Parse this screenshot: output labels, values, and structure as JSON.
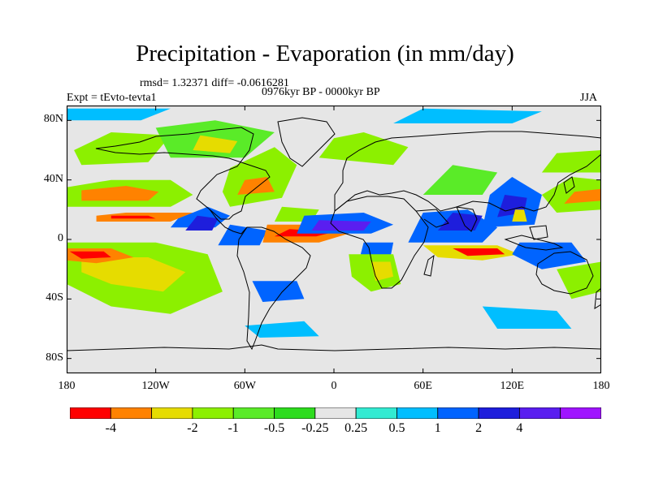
{
  "title": "Precipitation - Evaporation (in mm/day)",
  "stats": "rmsd= 1.32371 diff= -0.0616281",
  "period": "0976kyr BP - 0000kyr BP",
  "expt": "Expt = tEvto-tevta1",
  "season": "JJA",
  "map": {
    "projection": "cylindrical-equidistant",
    "lon_range": [
      -180,
      180
    ],
    "lat_range": [
      -90,
      90
    ],
    "lat_ticks": [
      {
        "lat": 80,
        "label": "80N"
      },
      {
        "lat": 40,
        "label": "40N"
      },
      {
        "lat": 0,
        "label": "0"
      },
      {
        "lat": -40,
        "label": "40S"
      },
      {
        "lat": -80,
        "label": "80S"
      }
    ],
    "lon_ticks": [
      {
        "lon": -180,
        "label": "180"
      },
      {
        "lon": -120,
        "label": "120W"
      },
      {
        "lon": -60,
        "label": "60W"
      },
      {
        "lon": 0,
        "label": "0"
      },
      {
        "lon": 60,
        "label": "60E"
      },
      {
        "lon": 120,
        "label": "120E"
      },
      {
        "lon": 180,
        "label": "180"
      }
    ],
    "neutral_color": "#e6e6e6",
    "regions": [
      {
        "c": 3,
        "pts": [
          [
            -180,
            22
          ],
          [
            -110,
            22
          ],
          [
            -95,
            30
          ],
          [
            -110,
            40
          ],
          [
            -150,
            40
          ],
          [
            -180,
            35
          ]
        ]
      },
      {
        "c": 1,
        "pts": [
          [
            -170,
            26
          ],
          [
            -125,
            26
          ],
          [
            -118,
            32
          ],
          [
            -140,
            36
          ],
          [
            -170,
            33
          ]
        ]
      },
      {
        "c": 3,
        "pts": [
          [
            -180,
            -2
          ],
          [
            -120,
            -2
          ],
          [
            -85,
            -10
          ],
          [
            -75,
            -35
          ],
          [
            -110,
            -50
          ],
          [
            -150,
            -45
          ],
          [
            -180,
            -30
          ]
        ]
      },
      {
        "c": 2,
        "pts": [
          [
            -170,
            -12
          ],
          [
            -125,
            -12
          ],
          [
            -100,
            -22
          ],
          [
            -115,
            -35
          ],
          [
            -150,
            -30
          ],
          [
            -170,
            -22
          ]
        ]
      },
      {
        "c": 1,
        "pts": [
          [
            -180,
            -6
          ],
          [
            -150,
            -6
          ],
          [
            -135,
            -12
          ],
          [
            -160,
            -16
          ],
          [
            -180,
            -14
          ]
        ]
      },
      {
        "c": 0,
        "pts": [
          [
            -178,
            -8
          ],
          [
            -155,
            -8
          ],
          [
            -150,
            -12
          ],
          [
            -170,
            -13
          ]
        ]
      },
      {
        "c": 1,
        "pts": [
          [
            -160,
            12
          ],
          [
            -110,
            12
          ],
          [
            -95,
            18
          ],
          [
            -140,
            18
          ],
          [
            -160,
            16
          ]
        ]
      },
      {
        "c": 0,
        "pts": [
          [
            -150,
            14
          ],
          [
            -120,
            14
          ],
          [
            -125,
            16
          ],
          [
            -150,
            16
          ]
        ]
      },
      {
        "c": 9,
        "pts": [
          [
            -110,
            8
          ],
          [
            -80,
            8
          ],
          [
            -70,
            16
          ],
          [
            -85,
            22
          ],
          [
            -105,
            14
          ]
        ]
      },
      {
        "c": 10,
        "pts": [
          [
            -100,
            6
          ],
          [
            -82,
            6
          ],
          [
            -78,
            14
          ],
          [
            -92,
            16
          ]
        ]
      },
      {
        "c": 9,
        "pts": [
          [
            -78,
            -4
          ],
          [
            -50,
            -4
          ],
          [
            -45,
            6
          ],
          [
            -70,
            10
          ]
        ]
      },
      {
        "c": 9,
        "pts": [
          [
            -55,
            -28
          ],
          [
            -25,
            -28
          ],
          [
            -20,
            -40
          ],
          [
            -48,
            -42
          ]
        ]
      },
      {
        "c": 3,
        "pts": [
          [
            -70,
            22
          ],
          [
            -35,
            28
          ],
          [
            -25,
            50
          ],
          [
            -40,
            62
          ],
          [
            -70,
            48
          ],
          [
            -75,
            32
          ]
        ]
      },
      {
        "c": 1,
        "pts": [
          [
            -65,
            30
          ],
          [
            -40,
            32
          ],
          [
            -45,
            42
          ],
          [
            -60,
            40
          ]
        ]
      },
      {
        "c": 3,
        "pts": [
          [
            -170,
            50
          ],
          [
            -125,
            52
          ],
          [
            -110,
            70
          ],
          [
            -150,
            72
          ],
          [
            -175,
            60
          ]
        ]
      },
      {
        "c": 4,
        "pts": [
          [
            -110,
            55
          ],
          [
            -60,
            55
          ],
          [
            -40,
            72
          ],
          [
            -80,
            80
          ],
          [
            -120,
            75
          ]
        ]
      },
      {
        "c": 2,
        "pts": [
          [
            -95,
            60
          ],
          [
            -70,
            58
          ],
          [
            -65,
            66
          ],
          [
            -90,
            70
          ]
        ]
      },
      {
        "c": 1,
        "pts": [
          [
            -48,
            -2
          ],
          [
            -10,
            -2
          ],
          [
            10,
            4
          ],
          [
            -5,
            10
          ],
          [
            -45,
            10
          ]
        ]
      },
      {
        "c": 0,
        "pts": [
          [
            -40,
            2
          ],
          [
            -12,
            2
          ],
          [
            0,
            5
          ],
          [
            -30,
            7
          ]
        ]
      },
      {
        "c": 3,
        "pts": [
          [
            -40,
            12
          ],
          [
            -15,
            12
          ],
          [
            -10,
            20
          ],
          [
            -35,
            22
          ]
        ]
      },
      {
        "c": 9,
        "pts": [
          [
            -25,
            4
          ],
          [
            25,
            4
          ],
          [
            40,
            10
          ],
          [
            20,
            18
          ],
          [
            -20,
            16
          ]
        ]
      },
      {
        "c": 11,
        "pts": [
          [
            -15,
            6
          ],
          [
            20,
            6
          ],
          [
            25,
            12
          ],
          [
            -10,
            13
          ]
        ]
      },
      {
        "c": 9,
        "pts": [
          [
            20,
            -2
          ],
          [
            40,
            -2
          ],
          [
            38,
            -12
          ],
          [
            18,
            -10
          ]
        ]
      },
      {
        "c": 3,
        "pts": [
          [
            10,
            -10
          ],
          [
            40,
            -10
          ],
          [
            45,
            -30
          ],
          [
            25,
            -35
          ],
          [
            12,
            -25
          ]
        ]
      },
      {
        "c": 2,
        "pts": [
          [
            25,
            -15
          ],
          [
            38,
            -15
          ],
          [
            40,
            -25
          ],
          [
            28,
            -28
          ]
        ]
      },
      {
        "c": 3,
        "pts": [
          [
            -10,
            55
          ],
          [
            40,
            50
          ],
          [
            50,
            62
          ],
          [
            20,
            72
          ],
          [
            0,
            68
          ]
        ]
      },
      {
        "c": 4,
        "pts": [
          [
            60,
            30
          ],
          [
            100,
            30
          ],
          [
            110,
            45
          ],
          [
            80,
            50
          ]
        ]
      },
      {
        "c": 9,
        "pts": [
          [
            50,
            -2
          ],
          [
            100,
            -2
          ],
          [
            110,
            8
          ],
          [
            90,
            20
          ],
          [
            60,
            18
          ]
        ]
      },
      {
        "c": 10,
        "pts": [
          [
            70,
            6
          ],
          [
            95,
            6
          ],
          [
            100,
            16
          ],
          [
            80,
            18
          ]
        ]
      },
      {
        "c": 2,
        "pts": [
          [
            60,
            -4
          ],
          [
            110,
            -4
          ],
          [
            125,
            -10
          ],
          [
            100,
            -14
          ],
          [
            70,
            -12
          ]
        ]
      },
      {
        "c": 0,
        "pts": [
          [
            80,
            -6
          ],
          [
            110,
            -6
          ],
          [
            115,
            -10
          ],
          [
            90,
            -11
          ]
        ]
      },
      {
        "c": 9,
        "pts": [
          [
            100,
            8
          ],
          [
            135,
            10
          ],
          [
            140,
            30
          ],
          [
            120,
            42
          ],
          [
            105,
            30
          ]
        ]
      },
      {
        "c": 10,
        "pts": [
          [
            110,
            15
          ],
          [
            128,
            18
          ],
          [
            130,
            28
          ],
          [
            115,
            30
          ]
        ]
      },
      {
        "c": 2,
        "pts": [
          [
            120,
            12
          ],
          [
            130,
            12
          ],
          [
            128,
            20
          ],
          [
            122,
            20
          ]
        ]
      },
      {
        "c": 9,
        "pts": [
          [
            125,
            -2
          ],
          [
            160,
            -2
          ],
          [
            170,
            -15
          ],
          [
            140,
            -20
          ],
          [
            120,
            -10
          ]
        ]
      },
      {
        "c": 3,
        "pts": [
          [
            150,
            18
          ],
          [
            180,
            20
          ],
          [
            180,
            40
          ],
          [
            160,
            42
          ],
          [
            140,
            30
          ]
        ]
      },
      {
        "c": 1,
        "pts": [
          [
            155,
            24
          ],
          [
            180,
            26
          ],
          [
            180,
            34
          ],
          [
            162,
            32
          ]
        ]
      },
      {
        "c": 3,
        "pts": [
          [
            140,
            45
          ],
          [
            180,
            45
          ],
          [
            180,
            60
          ],
          [
            150,
            58
          ]
        ]
      },
      {
        "c": 3,
        "pts": [
          [
            150,
            -20
          ],
          [
            180,
            -15
          ],
          [
            180,
            -35
          ],
          [
            160,
            -40
          ]
        ]
      },
      {
        "c": 8,
        "pts": [
          [
            -60,
            -58
          ],
          [
            -20,
            -55
          ],
          [
            -10,
            -65
          ],
          [
            -50,
            -66
          ]
        ]
      },
      {
        "c": 8,
        "pts": [
          [
            100,
            -45
          ],
          [
            150,
            -48
          ],
          [
            160,
            -60
          ],
          [
            110,
            -60
          ]
        ]
      },
      {
        "c": 8,
        "pts": [
          [
            -180,
            80
          ],
          [
            -130,
            80
          ],
          [
            -110,
            88
          ],
          [
            -180,
            88
          ]
        ]
      },
      {
        "c": 8,
        "pts": [
          [
            40,
            78
          ],
          [
            120,
            78
          ],
          [
            140,
            86
          ],
          [
            60,
            88
          ]
        ]
      }
    ]
  },
  "colorbar": {
    "colors": [
      "#ff0000",
      "#ff8200",
      "#e6dc00",
      "#8cf000",
      "#5aeb28",
      "#2ddc1e",
      "#e6e6e6",
      "#32ebd2",
      "#00beff",
      "#0064ff",
      "#1e1edc",
      "#5a1ef0",
      "#a014ff"
    ],
    "labels": [
      "-4",
      "-2",
      "-1",
      "-0.5",
      "-0.25",
      "0.25",
      "0.5",
      "1",
      "2",
      "4"
    ],
    "label_after_box": [
      1,
      3,
      4,
      5,
      6,
      7,
      8,
      9,
      10,
      11
    ]
  }
}
